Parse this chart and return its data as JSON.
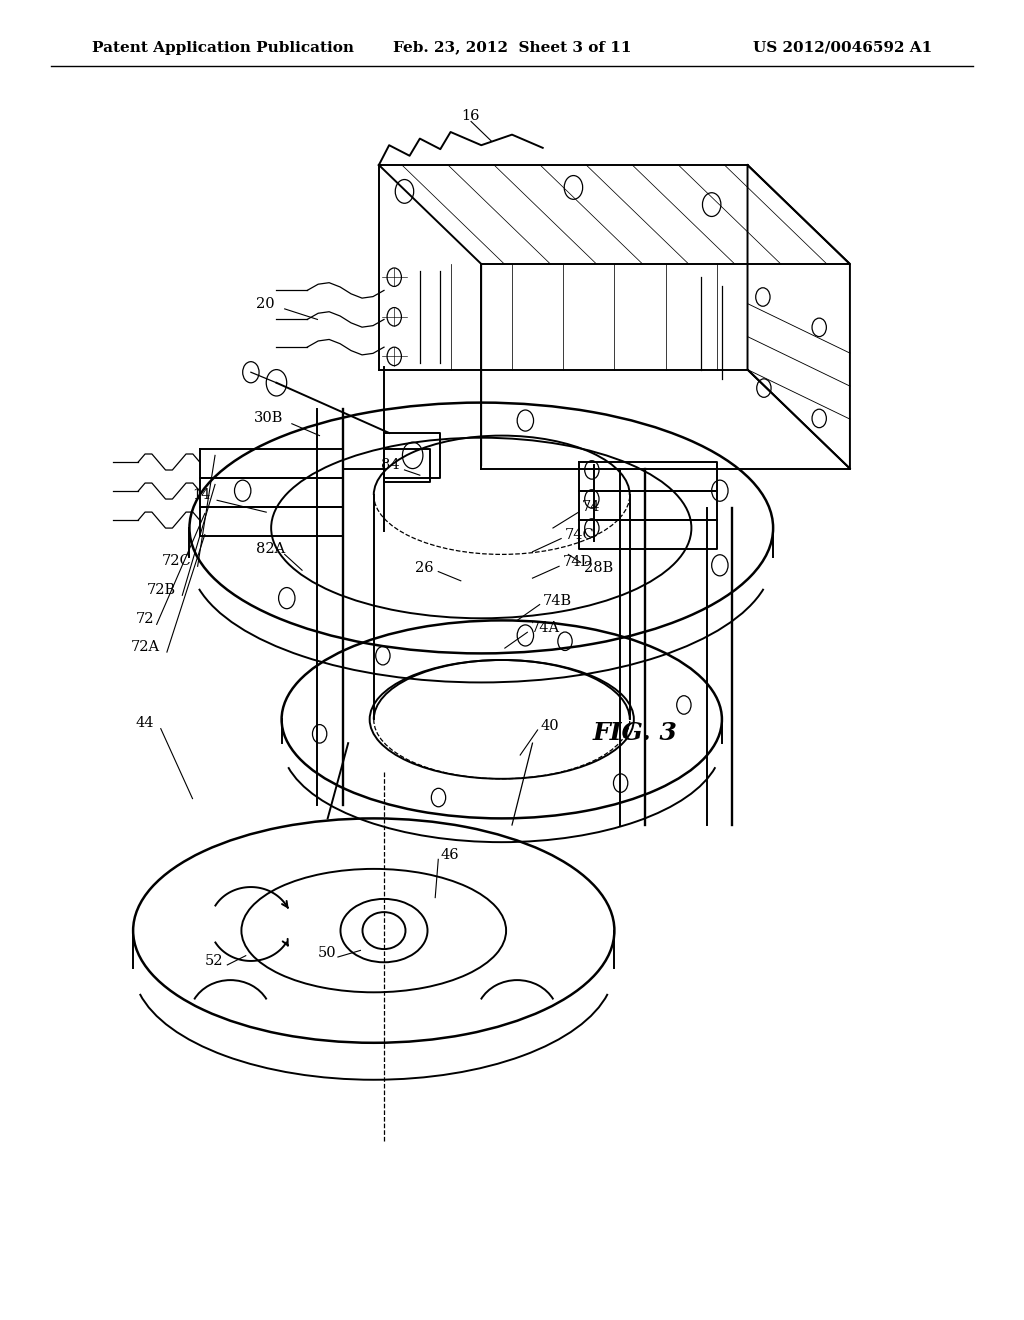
{
  "header_left": "Patent Application Publication",
  "header_center": "Feb. 23, 2012  Sheet 3 of 11",
  "header_right": "US 2012/0046592 A1",
  "figure_label": "FIG. 3",
  "background_color": "#ffffff",
  "line_color": "#000000",
  "header_fontsize": 11,
  "label_fontsize": 10.5,
  "fig_label_fontsize": 18
}
